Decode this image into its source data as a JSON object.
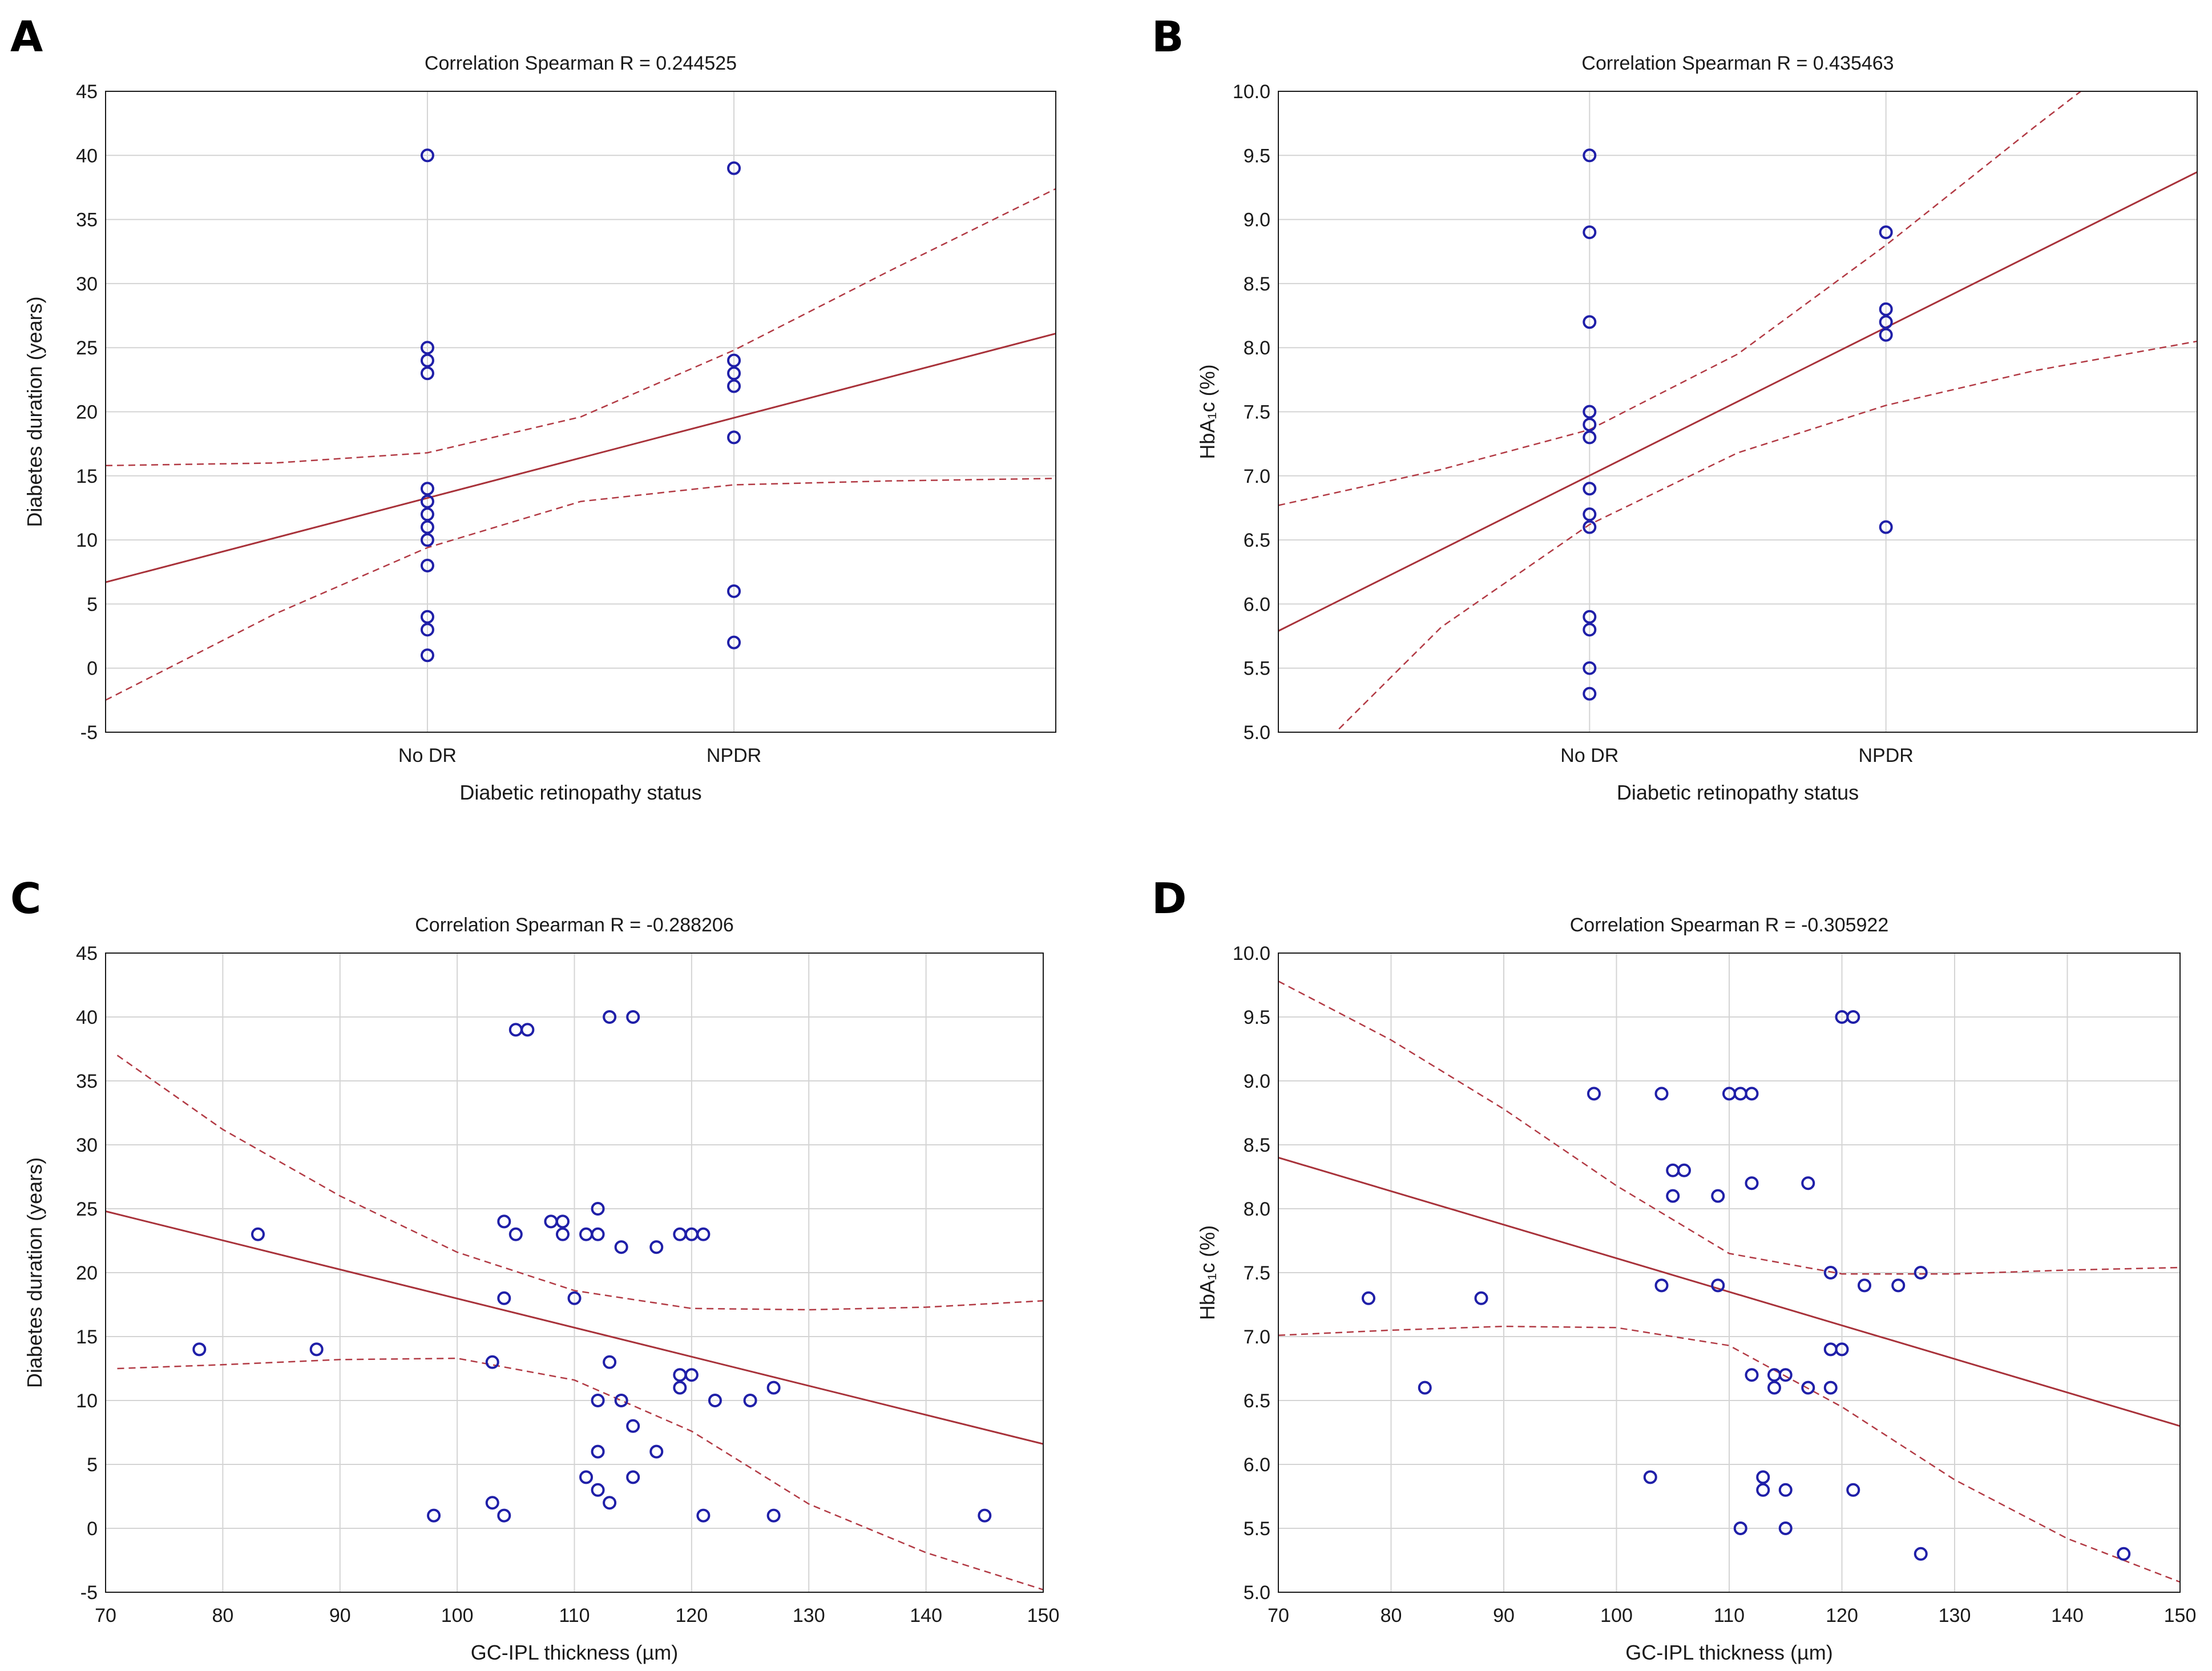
{
  "chart_data": [
    {
      "letter": "A",
      "type": "scatter",
      "x_type": "category",
      "title": "Correlation Spearman R = 0.244525",
      "xlabel": "Diabetic retinopathy status",
      "ylabel": "Diabetes duration (years)",
      "categories": [
        "No DR",
        "NPDR"
      ],
      "xlim": [
        -0.05,
        3.05
      ],
      "ylim": [
        -5,
        45
      ],
      "yticks": [
        -5,
        0,
        5,
        10,
        15,
        20,
        25,
        30,
        35,
        40,
        45
      ],
      "points": [
        {
          "x": 1,
          "y": 40
        },
        {
          "x": 1,
          "y": 25
        },
        {
          "x": 1,
          "y": 24
        },
        {
          "x": 1,
          "y": 23
        },
        {
          "x": 1,
          "y": 14
        },
        {
          "x": 1,
          "y": 13
        },
        {
          "x": 1,
          "y": 12
        },
        {
          "x": 1,
          "y": 11
        },
        {
          "x": 1,
          "y": 10
        },
        {
          "x": 1,
          "y": 8
        },
        {
          "x": 1,
          "y": 4
        },
        {
          "x": 1,
          "y": 3
        },
        {
          "x": 1,
          "y": 1
        },
        {
          "x": 2,
          "y": 39
        },
        {
          "x": 2,
          "y": 24
        },
        {
          "x": 2,
          "y": 23
        },
        {
          "x": 2,
          "y": 22
        },
        {
          "x": 2,
          "y": 18
        },
        {
          "x": 2,
          "y": 6
        },
        {
          "x": 2,
          "y": 2
        }
      ],
      "fit": [
        [
          -0.05,
          6.7
        ],
        [
          3.05,
          26.1
        ]
      ],
      "ci_upper": [
        [
          -0.05,
          15.8
        ],
        [
          0.5,
          16.0
        ],
        [
          1.0,
          16.8
        ],
        [
          1.5,
          19.6
        ],
        [
          2.0,
          24.8
        ],
        [
          2.5,
          30.9
        ],
        [
          3.05,
          37.4
        ]
      ],
      "ci_lower": [
        [
          -0.05,
          -2.5
        ],
        [
          0.5,
          4.2
        ],
        [
          1.0,
          9.4
        ],
        [
          1.5,
          13.0
        ],
        [
          2.0,
          14.3
        ],
        [
          2.5,
          14.6
        ],
        [
          3.05,
          14.8
        ]
      ]
    },
    {
      "letter": "B",
      "type": "scatter",
      "x_type": "category",
      "title": "Correlation Spearman R = 0.435463",
      "xlabel": "Diabetic retinopathy status",
      "ylabel": "HbA₁c (%)",
      "categories": [
        "No DR",
        "NPDR"
      ],
      "xlim": [
        -0.05,
        3.05
      ],
      "ylim": [
        5.0,
        10.0
      ],
      "yticks": [
        "5.0",
        "5.5",
        "6.0",
        "6.5",
        "7.0",
        "7.5",
        "8.0",
        "8.5",
        "9.0",
        "9.5",
        "10.0"
      ],
      "points": [
        {
          "x": 1,
          "y": 9.5
        },
        {
          "x": 1,
          "y": 8.9
        },
        {
          "x": 1,
          "y": 8.2
        },
        {
          "x": 1,
          "y": 7.5
        },
        {
          "x": 1,
          "y": 7.4
        },
        {
          "x": 1,
          "y": 7.3
        },
        {
          "x": 1,
          "y": 6.9
        },
        {
          "x": 1,
          "y": 6.7
        },
        {
          "x": 1,
          "y": 6.6
        },
        {
          "x": 1,
          "y": 5.9
        },
        {
          "x": 1,
          "y": 5.8
        },
        {
          "x": 1,
          "y": 5.5
        },
        {
          "x": 1,
          "y": 5.3
        },
        {
          "x": 2,
          "y": 8.9
        },
        {
          "x": 2,
          "y": 8.3
        },
        {
          "x": 2,
          "y": 8.2
        },
        {
          "x": 2,
          "y": 8.1
        },
        {
          "x": 2,
          "y": 6.6
        }
      ],
      "fit": [
        [
          -0.05,
          5.79
        ],
        [
          3.05,
          9.37
        ]
      ],
      "ci_upper": [
        [
          -0.05,
          6.77
        ],
        [
          0.5,
          7.05
        ],
        [
          1.0,
          7.36
        ],
        [
          1.5,
          7.95
        ],
        [
          2.0,
          8.8
        ],
        [
          2.5,
          9.72
        ],
        [
          3.05,
          10.7
        ]
      ],
      "ci_lower": [
        [
          0.1,
          4.9
        ],
        [
          0.5,
          5.82
        ],
        [
          1.0,
          6.62
        ],
        [
          1.5,
          7.18
        ],
        [
          2.0,
          7.55
        ],
        [
          2.5,
          7.82
        ],
        [
          3.05,
          8.05
        ]
      ]
    },
    {
      "letter": "C",
      "type": "scatter",
      "x_type": "numeric",
      "title": "Correlation Spearman R = -0.288206",
      "xlabel": "GC-IPL thickness (µm)",
      "ylabel": "Diabetes duration (years)",
      "xlim": [
        70,
        150
      ],
      "xticks": [
        70,
        80,
        90,
        100,
        110,
        120,
        130,
        140,
        150
      ],
      "ylim": [
        -5,
        45
      ],
      "yticks": [
        -5,
        0,
        5,
        10,
        15,
        20,
        25,
        30,
        35,
        40,
        45
      ],
      "points": [
        {
          "x": 78,
          "y": 14
        },
        {
          "x": 83,
          "y": 23
        },
        {
          "x": 88,
          "y": 14
        },
        {
          "x": 98,
          "y": 1
        },
        {
          "x": 103,
          "y": 2
        },
        {
          "x": 103,
          "y": 13
        },
        {
          "x": 104,
          "y": 1
        },
        {
          "x": 104,
          "y": 18
        },
        {
          "x": 104,
          "y": 24
        },
        {
          "x": 105,
          "y": 23
        },
        {
          "x": 105,
          "y": 39
        },
        {
          "x": 106,
          "y": 39
        },
        {
          "x": 108,
          "y": 24
        },
        {
          "x": 109,
          "y": 24
        },
        {
          "x": 109,
          "y": 23
        },
        {
          "x": 110,
          "y": 18
        },
        {
          "x": 111,
          "y": 23
        },
        {
          "x": 111,
          "y": 4
        },
        {
          "x": 112,
          "y": 23
        },
        {
          "x": 112,
          "y": 25
        },
        {
          "x": 112,
          "y": 10
        },
        {
          "x": 112,
          "y": 6
        },
        {
          "x": 112,
          "y": 3
        },
        {
          "x": 113,
          "y": 40
        },
        {
          "x": 113,
          "y": 13
        },
        {
          "x": 113,
          "y": 2
        },
        {
          "x": 114,
          "y": 22
        },
        {
          "x": 114,
          "y": 10
        },
        {
          "x": 115,
          "y": 40
        },
        {
          "x": 115,
          "y": 8
        },
        {
          "x": 115,
          "y": 4
        },
        {
          "x": 117,
          "y": 22
        },
        {
          "x": 117,
          "y": 6
        },
        {
          "x": 119,
          "y": 23
        },
        {
          "x": 119,
          "y": 12
        },
        {
          "x": 119,
          "y": 11
        },
        {
          "x": 120,
          "y": 23
        },
        {
          "x": 120,
          "y": 12
        },
        {
          "x": 121,
          "y": 23
        },
        {
          "x": 121,
          "y": 1
        },
        {
          "x": 122,
          "y": 10
        },
        {
          "x": 125,
          "y": 10
        },
        {
          "x": 127,
          "y": 11
        },
        {
          "x": 127,
          "y": 1
        },
        {
          "x": 145,
          "y": 1
        }
      ],
      "fit": [
        [
          70,
          24.8
        ],
        [
          150,
          6.6
        ]
      ],
      "ci_upper": [
        [
          71,
          37.0
        ],
        [
          80,
          31.2
        ],
        [
          90,
          26.0
        ],
        [
          100,
          21.6
        ],
        [
          110,
          18.6
        ],
        [
          120,
          17.2
        ],
        [
          130,
          17.1
        ],
        [
          140,
          17.3
        ],
        [
          150,
          17.8
        ]
      ],
      "ci_lower": [
        [
          71,
          12.5
        ],
        [
          80,
          12.8
        ],
        [
          90,
          13.2
        ],
        [
          100,
          13.3
        ],
        [
          110,
          11.6
        ],
        [
          120,
          7.6
        ],
        [
          130,
          1.9
        ],
        [
          140,
          -1.9
        ],
        [
          150,
          -4.8
        ]
      ]
    },
    {
      "letter": "D",
      "type": "scatter",
      "x_type": "numeric",
      "title": "Correlation Spearman R = -0.305922",
      "xlabel": "GC-IPL thickness (µm)",
      "ylabel": "HbA₁c (%)",
      "xlim": [
        70,
        150
      ],
      "xticks": [
        70,
        80,
        90,
        100,
        110,
        120,
        130,
        140,
        150
      ],
      "ylim": [
        5.0,
        10.0
      ],
      "yticks": [
        "5.0",
        "5.5",
        "6.0",
        "6.5",
        "7.0",
        "7.5",
        "8.0",
        "8.5",
        "9.0",
        "9.5",
        "10.0"
      ],
      "points": [
        {
          "x": 78,
          "y": 7.3
        },
        {
          "x": 83,
          "y": 6.6
        },
        {
          "x": 88,
          "y": 7.3
        },
        {
          "x": 98,
          "y": 8.9
        },
        {
          "x": 103,
          "y": 5.9
        },
        {
          "x": 104,
          "y": 8.9
        },
        {
          "x": 104,
          "y": 7.4
        },
        {
          "x": 105,
          "y": 8.3
        },
        {
          "x": 105,
          "y": 8.1
        },
        {
          "x": 106,
          "y": 8.3
        },
        {
          "x": 109,
          "y": 8.1
        },
        {
          "x": 109,
          "y": 7.4
        },
        {
          "x": 110,
          "y": 8.9
        },
        {
          "x": 111,
          "y": 8.9
        },
        {
          "x": 111,
          "y": 5.5
        },
        {
          "x": 112,
          "y": 8.9
        },
        {
          "x": 112,
          "y": 8.2
        },
        {
          "x": 112,
          "y": 6.7
        },
        {
          "x": 113,
          "y": 5.9
        },
        {
          "x": 113,
          "y": 5.8
        },
        {
          "x": 114,
          "y": 6.7
        },
        {
          "x": 114,
          "y": 6.6
        },
        {
          "x": 115,
          "y": 6.7
        },
        {
          "x": 115,
          "y": 5.8
        },
        {
          "x": 115,
          "y": 5.5
        },
        {
          "x": 117,
          "y": 8.2
        },
        {
          "x": 117,
          "y": 6.6
        },
        {
          "x": 119,
          "y": 7.5
        },
        {
          "x": 119,
          "y": 6.9
        },
        {
          "x": 119,
          "y": 6.6
        },
        {
          "x": 120,
          "y": 9.5
        },
        {
          "x": 120,
          "y": 6.9
        },
        {
          "x": 121,
          "y": 9.5
        },
        {
          "x": 121,
          "y": 5.8
        },
        {
          "x": 122,
          "y": 7.4
        },
        {
          "x": 125,
          "y": 7.4
        },
        {
          "x": 127,
          "y": 7.5
        },
        {
          "x": 127,
          "y": 5.3
        },
        {
          "x": 145,
          "y": 5.3
        }
      ],
      "fit": [
        [
          70,
          8.4
        ],
        [
          150,
          6.3
        ]
      ],
      "ci_upper": [
        [
          70,
          9.78
        ],
        [
          80,
          9.32
        ],
        [
          90,
          8.78
        ],
        [
          100,
          8.18
        ],
        [
          110,
          7.65
        ],
        [
          120,
          7.49
        ],
        [
          130,
          7.49
        ],
        [
          140,
          7.52
        ],
        [
          150,
          7.54
        ]
      ],
      "ci_lower": [
        [
          70,
          7.01
        ],
        [
          80,
          7.05
        ],
        [
          90,
          7.08
        ],
        [
          100,
          7.07
        ],
        [
          110,
          6.93
        ],
        [
          120,
          6.45
        ],
        [
          130,
          5.88
        ],
        [
          140,
          5.42
        ],
        [
          150,
          5.08
        ]
      ]
    }
  ]
}
